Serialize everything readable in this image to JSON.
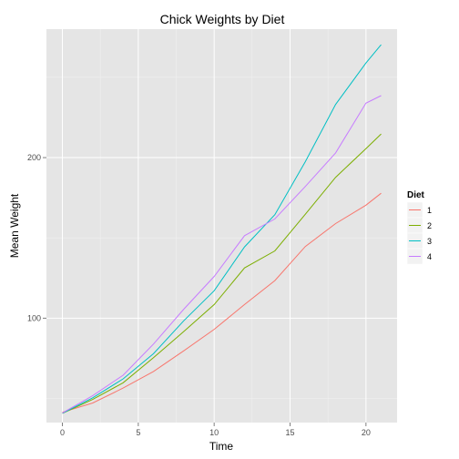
{
  "chart_data": {
    "type": "line",
    "title": "Chick Weights by Diet",
    "xlabel": "Time",
    "ylabel": "Mean Weight",
    "xlim": [
      -1.05,
      22.05
    ],
    "ylim": [
      35,
      280
    ],
    "x_ticks": [
      0,
      5,
      10,
      15,
      20
    ],
    "y_ticks": [
      100,
      200
    ],
    "grid": true,
    "legend": {
      "title": "Diet",
      "placement": "right"
    },
    "x": [
      0,
      2,
      4,
      6,
      8,
      10,
      12,
      14,
      16,
      18,
      20,
      21
    ],
    "series": [
      {
        "name": "1",
        "color": "#F8766D",
        "values": [
          41.4,
          47.2,
          56.5,
          66.8,
          79.7,
          93.1,
          108.5,
          123.4,
          144.6,
          158.9,
          170.4,
          177.8
        ]
      },
      {
        "name": "2",
        "color": "#7CAE00",
        "values": [
          40.7,
          49.4,
          59.8,
          75.4,
          91.7,
          108.5,
          131.3,
          141.9,
          164.7,
          187.7,
          205.6,
          214.7
        ]
      },
      {
        "name": "3",
        "color": "#00BFC4",
        "values": [
          40.8,
          50.4,
          62.2,
          77.9,
          98.4,
          117.1,
          144.4,
          164.5,
          197.4,
          233.1,
          258.9,
          270.3
        ]
      },
      {
        "name": "4",
        "color": "#C77CFF",
        "values": [
          41.0,
          51.8,
          64.5,
          83.9,
          105.6,
          126.0,
          151.4,
          161.8,
          182.0,
          202.9,
          233.9,
          238.6
        ]
      }
    ]
  }
}
